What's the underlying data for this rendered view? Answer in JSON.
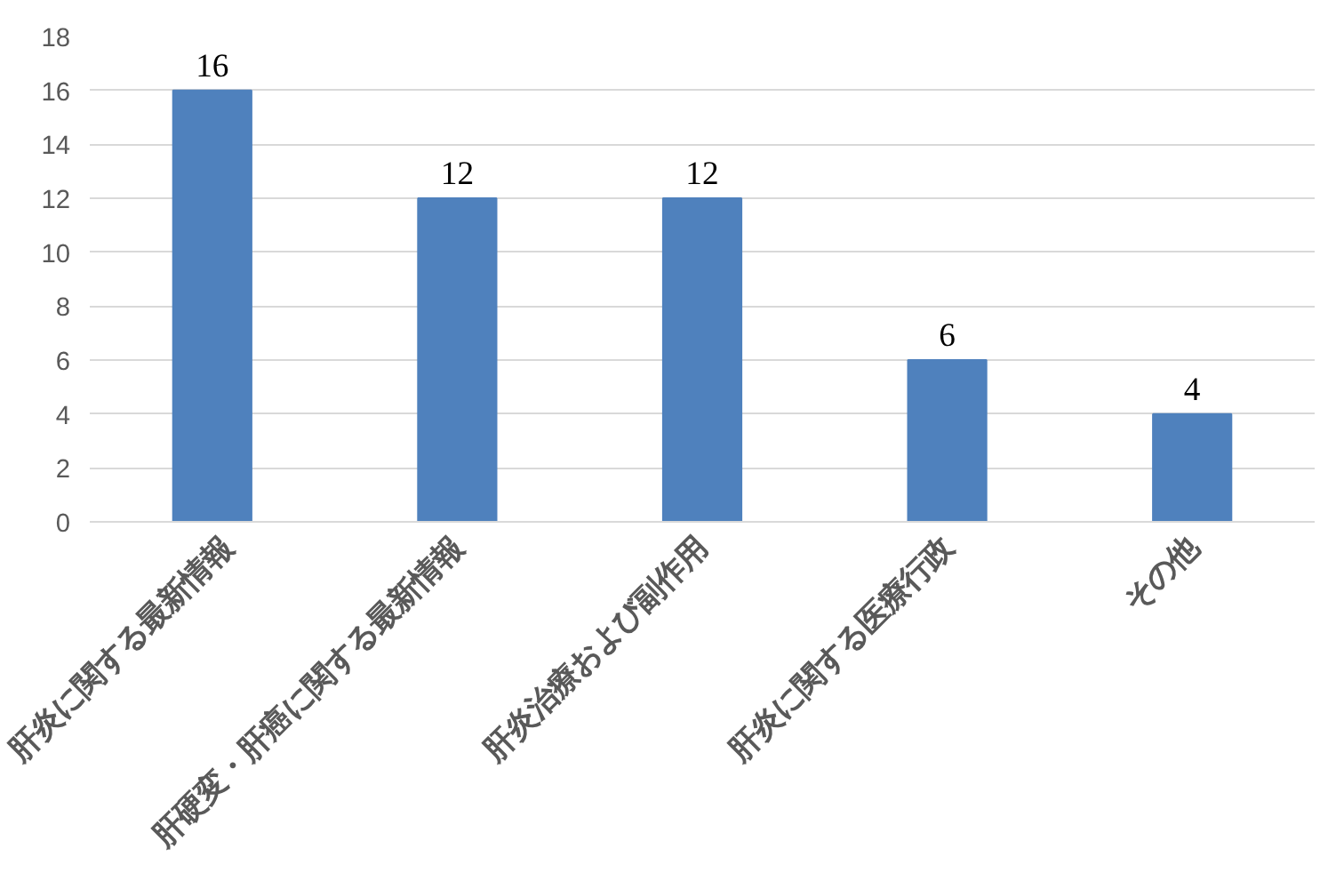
{
  "chart_data": {
    "type": "bar",
    "categories": [
      "肝炎に関する最新情報",
      "肝硬変・肝癌に関する最新情報",
      "肝炎治療および副作用",
      "肝炎に関する医療行政",
      "その他"
    ],
    "values": [
      16,
      12,
      12,
      6,
      4
    ],
    "color": "#4f81bd",
    "ylim": [
      0,
      18
    ],
    "yticks": [
      0,
      2,
      4,
      6,
      8,
      10,
      12,
      14,
      16,
      18
    ],
    "grid": "y",
    "data_labels": true
  }
}
